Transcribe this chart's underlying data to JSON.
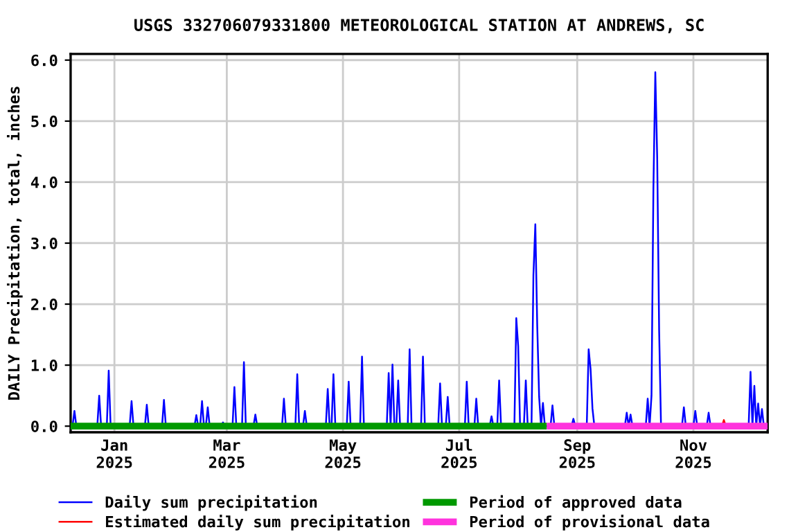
{
  "chart_data": {
    "type": "line",
    "title": "USGS 332706079331800 METEOROLOGICAL STATION AT ANDREWS, SC",
    "ylabel": "DAILY Precipitation, total, inches",
    "xlim": [
      "2024-12-09",
      "2025-12-10"
    ],
    "xticks": [
      {
        "value": "2025-01-01",
        "label": "Jan\n2025"
      },
      {
        "value": "2025-03-01",
        "label": "Mar\n2025"
      },
      {
        "value": "2025-05-01",
        "label": "May\n2025"
      },
      {
        "value": "2025-07-01",
        "label": "Jul\n2025"
      },
      {
        "value": "2025-09-01",
        "label": "Sep\n2025"
      },
      {
        "value": "2025-11-01",
        "label": "Nov\n2025"
      }
    ],
    "ylim": [
      -0.1,
      6.1
    ],
    "yticks": [
      {
        "value": 0,
        "label": "0.0"
      },
      {
        "value": 1,
        "label": "1.0"
      },
      {
        "value": 2,
        "label": "2.0"
      },
      {
        "value": 3,
        "label": "3.0"
      },
      {
        "value": 4,
        "label": "4.0"
      },
      {
        "value": 5,
        "label": "5.0"
      },
      {
        "value": 6,
        "label": "6.0"
      }
    ],
    "grid": true,
    "legend": "bottom",
    "marker": "none",
    "line_style": "solid",
    "series": [
      {
        "name": "Daily sum precipitation",
        "color": "#0000ff",
        "x": [
          "2024-12-10",
          "2024-12-11",
          "2024-12-12",
          "2024-12-23",
          "2024-12-24",
          "2024-12-25",
          "2024-12-28",
          "2024-12-29",
          "2024-12-30",
          "2025-01-09",
          "2025-01-10",
          "2025-01-11",
          "2025-01-17",
          "2025-01-18",
          "2025-01-19",
          "2025-01-26",
          "2025-01-27",
          "2025-01-28",
          "2025-02-12",
          "2025-02-13",
          "2025-02-14",
          "2025-02-15",
          "2025-02-16",
          "2025-02-17",
          "2025-02-18",
          "2025-02-19",
          "2025-02-20",
          "2025-02-26",
          "2025-02-27",
          "2025-02-28",
          "2025-03-04",
          "2025-03-05",
          "2025-03-06",
          "2025-03-09",
          "2025-03-10",
          "2025-03-11",
          "2025-03-15",
          "2025-03-16",
          "2025-03-17",
          "2025-03-30",
          "2025-03-31",
          "2025-04-01",
          "2025-04-06",
          "2025-04-07",
          "2025-04-08",
          "2025-04-10",
          "2025-04-11",
          "2025-04-12",
          "2025-04-22",
          "2025-04-23",
          "2025-04-24",
          "2025-04-25",
          "2025-04-26",
          "2025-04-27",
          "2025-05-03",
          "2025-05-04",
          "2025-05-05",
          "2025-05-10",
          "2025-05-11",
          "2025-05-12",
          "2025-05-24",
          "2025-05-25",
          "2025-05-26",
          "2025-05-27",
          "2025-05-28",
          "2025-05-29",
          "2025-05-30",
          "2025-05-31",
          "2025-06-04",
          "2025-06-05",
          "2025-06-06",
          "2025-06-11",
          "2025-06-12",
          "2025-06-13",
          "2025-06-20",
          "2025-06-21",
          "2025-06-22",
          "2025-06-24",
          "2025-06-25",
          "2025-06-26",
          "2025-07-04",
          "2025-07-05",
          "2025-07-06",
          "2025-07-09",
          "2025-07-10",
          "2025-07-11",
          "2025-07-17",
          "2025-07-18",
          "2025-07-19",
          "2025-07-21",
          "2025-07-22",
          "2025-07-23",
          "2025-07-30",
          "2025-07-31",
          "2025-08-01",
          "2025-08-02",
          "2025-08-04",
          "2025-08-05",
          "2025-08-06",
          "2025-08-08",
          "2025-08-09",
          "2025-08-10",
          "2025-08-11",
          "2025-08-12",
          "2025-08-13",
          "2025-08-14",
          "2025-08-15",
          "2025-08-18",
          "2025-08-19",
          "2025-08-20",
          "2025-08-29",
          "2025-08-30",
          "2025-08-31",
          "2025-09-06",
          "2025-09-07",
          "2025-09-08",
          "2025-09-09",
          "2025-09-10",
          "2025-09-26",
          "2025-09-27",
          "2025-09-28",
          "2025-09-29",
          "2025-09-30",
          "2025-10-07",
          "2025-10-08",
          "2025-10-09",
          "2025-10-10",
          "2025-10-11",
          "2025-10-12",
          "2025-10-13",
          "2025-10-14",
          "2025-10-15",
          "2025-10-26",
          "2025-10-27",
          "2025-10-28",
          "2025-11-01",
          "2025-11-02",
          "2025-11-03",
          "2025-11-08",
          "2025-11-09",
          "2025-11-10",
          "2025-11-30",
          "2025-12-01",
          "2025-12-02",
          "2025-12-03",
          "2025-12-04",
          "2025-12-05",
          "2025-12-06",
          "2025-12-07",
          "2025-12-08"
        ],
        "values": [
          0,
          0.25,
          0,
          0,
          0.5,
          0,
          0,
          0.91,
          0,
          0,
          0.41,
          0,
          0,
          0.35,
          0,
          0,
          0.43,
          0,
          0,
          0.18,
          0,
          0,
          0.41,
          0,
          0,
          0.31,
          0,
          0,
          0.06,
          0,
          0,
          0.64,
          0,
          0,
          1.05,
          0,
          0,
          0.19,
          0,
          0,
          0.45,
          0,
          0,
          0.85,
          0,
          0,
          0.25,
          0,
          0,
          0.61,
          0,
          0,
          0.85,
          0,
          0,
          0.73,
          0,
          0,
          1.14,
          0,
          0,
          0.87,
          0,
          1.01,
          0,
          0,
          0.75,
          0,
          0,
          1.26,
          0,
          0,
          1.14,
          0,
          0,
          0.7,
          0,
          0,
          0.48,
          0,
          0,
          0.73,
          0,
          0,
          0.45,
          0,
          0,
          0.16,
          0,
          0,
          0.75,
          0,
          0,
          1.77,
          1.31,
          0,
          0,
          0.75,
          0,
          0,
          2.48,
          3.31,
          1.65,
          0.48,
          0,
          0.38,
          0,
          0,
          0.34,
          0,
          0,
          0.12,
          0,
          0,
          1.26,
          0.94,
          0.29,
          0,
          0,
          0.22,
          0,
          0.19,
          0,
          0,
          0.45,
          0,
          0.5,
          3.89,
          5.8,
          4.39,
          1.58,
          0,
          0,
          0.31,
          0,
          0,
          0.25,
          0,
          0,
          0.22,
          0,
          0,
          0.89,
          0,
          0.66,
          0,
          0.37,
          0,
          0.28,
          0
        ]
      },
      {
        "name": "Estimated daily sum precipitation",
        "color": "#ff0000",
        "x": [
          "2025-11-16",
          "2025-11-17",
          "2025-11-18"
        ],
        "values": [
          0,
          0.1,
          0
        ]
      },
      {
        "name": "Period of approved data",
        "color": "#009900",
        "type": "step",
        "x": [
          "2024-12-09",
          "2025-08-16"
        ],
        "values": [
          0,
          0
        ]
      },
      {
        "name": "Period of provisional data",
        "color": "#ff33dd",
        "type": "step",
        "x": [
          "2025-08-16",
          "2025-12-10"
        ],
        "values": [
          0,
          0
        ]
      }
    ]
  }
}
